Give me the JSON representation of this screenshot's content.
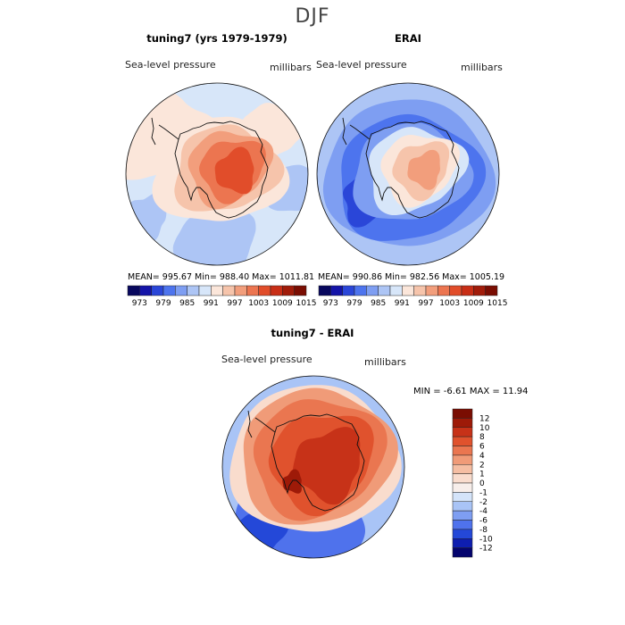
{
  "figure": {
    "title": "DJF"
  },
  "colors": {
    "abs_scale": [
      "#08085e",
      "#1414a8",
      "#2a46d8",
      "#4d74ee",
      "#7e9ef2",
      "#adc5f5",
      "#d7e6f9",
      "#fbe6da",
      "#f6c4ab",
      "#f29e7c",
      "#ec7550",
      "#e14d2a",
      "#c82e16",
      "#a11c0a",
      "#7a0d02"
    ],
    "diff_scale": [
      "#04046e",
      "#0e1eb0",
      "#2448d8",
      "#4f72ec",
      "#7e9ef2",
      "#a9c4f6",
      "#d4e4fa",
      "#f7eeea",
      "#f9dccd",
      "#f5bea3",
      "#f09b78",
      "#ea7650",
      "#e0522d",
      "#c73218",
      "#9e1a08",
      "#7a0d02"
    ],
    "land_outline": "#111111"
  },
  "panels": [
    {
      "title": "tuning7 (yrs 1979-1979)",
      "variable": "Sea-level pressure",
      "units": "millibars",
      "stats": {
        "mean": "995.67",
        "min": "988.40",
        "max": "1011.81"
      },
      "stats_text": "MEAN= 995.67   Min= 988.40   Max= 1011.81"
    },
    {
      "title": "ERAI",
      "variable": "Sea-level pressure",
      "units": "millibars",
      "stats": {
        "mean": "990.86",
        "min": "982.56",
        "max": "1005.19"
      },
      "stats_text": "MEAN= 990.86   Min= 982.56   Max= 1005.19"
    },
    {
      "title": "tuning7 - ERAI",
      "variable": "Sea-level pressure",
      "units": "millibars",
      "stats": {
        "min": "-6.61",
        "max": "11.94"
      },
      "stats_text": "MIN =   -6.61  MAX =   11.94"
    }
  ],
  "chart_data": [
    {
      "type": "heatmap",
      "projection": "south-polar-stereographic",
      "title": "tuning7 (yrs 1979-1979)",
      "variable": "Sea-level pressure",
      "units": "millibars",
      "colorbar_ticks": [
        "973",
        "979",
        "985",
        "991",
        "997",
        "1003",
        "1009",
        "1015"
      ],
      "levels": [
        970,
        973,
        976,
        979,
        982,
        985,
        988,
        991,
        994,
        997,
        1000,
        1003,
        1006,
        1009,
        1012,
        1015
      ],
      "mean": 995.67,
      "min": 988.4,
      "max": 1011.81
    },
    {
      "type": "heatmap",
      "projection": "south-polar-stereographic",
      "title": "ERAI",
      "variable": "Sea-level pressure",
      "units": "millibars",
      "colorbar_ticks": [
        "973",
        "979",
        "985",
        "991",
        "997",
        "1003",
        "1009",
        "1015"
      ],
      "levels": [
        970,
        973,
        976,
        979,
        982,
        985,
        988,
        991,
        994,
        997,
        1000,
        1003,
        1006,
        1009,
        1012,
        1015
      ],
      "mean": 990.86,
      "min": 982.56,
      "max": 1005.19
    },
    {
      "type": "heatmap",
      "projection": "south-polar-stereographic",
      "title": "tuning7 - ERAI",
      "variable": "Sea-level pressure",
      "units": "millibars",
      "colorbar_ticks": [
        "12",
        "10",
        "8",
        "6",
        "4",
        "2",
        "1",
        "0",
        "-1",
        "-2",
        "-4",
        "-6",
        "-8",
        "-10",
        "-12"
      ],
      "min": -6.61,
      "max": 11.94
    }
  ]
}
